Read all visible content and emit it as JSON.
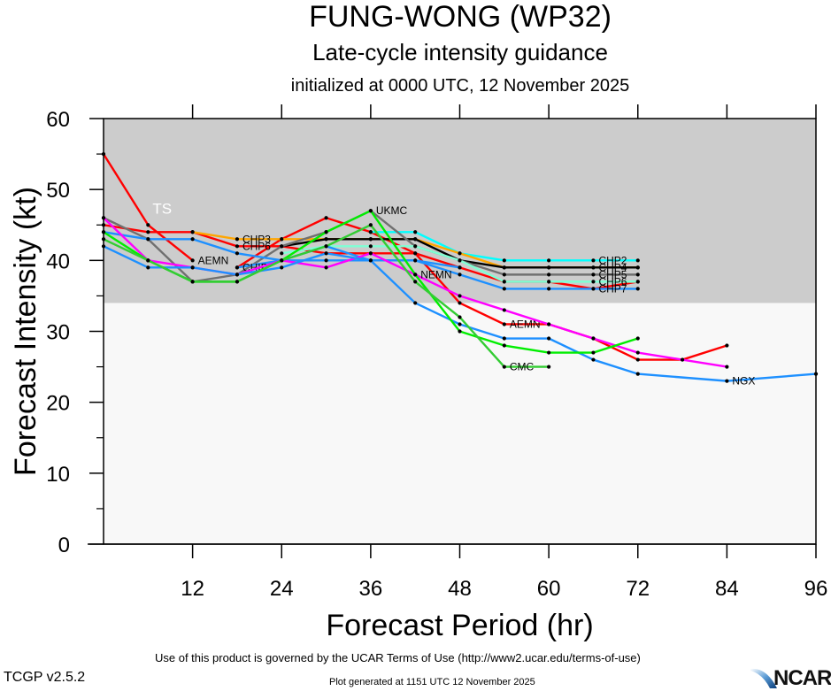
{
  "header": {
    "title": "FUNG-WONG (WP32)",
    "subtitle": "Late-cycle intensity guidance",
    "init_line": "initialized at 0000 UTC, 12 November 2025"
  },
  "footer": {
    "terms": "Use of this product is governed by the UCAR Terms of Use (http://www2.ucar.edu/terms-of-use)",
    "generated": "Plot generated at 1151 UTC   12 November 2025",
    "version": "TCGP v2.5.2",
    "logo": "NCAR"
  },
  "colors": {
    "ts_band": "#cccccc",
    "below_ts": "#f8f8f8"
  },
  "chart_data": {
    "type": "line",
    "title": "FUNG-WONG (WP32)",
    "xlabel": "Forecast Period (hr)",
    "ylabel": "Forecast Intensity (kt)",
    "xlim": [
      0,
      96
    ],
    "ylim": [
      0,
      60
    ],
    "xticks": [
      12,
      24,
      36,
      48,
      60,
      72,
      84,
      96
    ],
    "yticks": [
      0,
      10,
      20,
      30,
      40,
      50,
      60
    ],
    "grid": false,
    "bands": [
      {
        "label": "TS",
        "from": 34,
        "to": 60,
        "color": "#cccccc"
      }
    ],
    "series": [
      {
        "name": "AEMN",
        "color": "#ff0000",
        "x": [
          0,
          6,
          12
        ],
        "y": [
          55,
          45,
          40
        ],
        "label_at": 12
      },
      {
        "name": "AEMN",
        "color": "#ff0000",
        "x": [
          18,
          24,
          30,
          36,
          42,
          48,
          54,
          60,
          66,
          72,
          78,
          84
        ],
        "y": [
          39,
          43,
          46,
          44,
          41,
          34,
          31,
          31,
          29,
          26,
          26,
          28
        ],
        "label_at": 54
      },
      {
        "name": "CHP6",
        "color": "#ff0000",
        "x": [
          0,
          6,
          12,
          18,
          24,
          30,
          36,
          42,
          48,
          54,
          60,
          66,
          72
        ],
        "y": [
          45,
          44,
          44,
          42,
          42,
          41,
          41,
          41,
          39,
          37,
          37,
          36,
          37
        ],
        "label_at": 18
      },
      {
        "name": "CHP2",
        "color": "#00ffff",
        "x": [
          36,
          42,
          48,
          54,
          60,
          66,
          72
        ],
        "y": [
          44,
          44,
          41,
          40,
          40,
          40,
          40
        ],
        "label_at": 66
      },
      {
        "name": "CHP3",
        "color": "#ffa500",
        "x": [
          12,
          18,
          24,
          30,
          36,
          42,
          48,
          54,
          60,
          66,
          72
        ],
        "y": [
          44,
          43,
          43,
          43,
          43,
          43,
          41,
          39,
          39,
          39,
          39
        ],
        "label_at": 18
      },
      {
        "name": "CHP4",
        "color": "#000000",
        "x": [
          24,
          30,
          36,
          42,
          48,
          54,
          60,
          66,
          72
        ],
        "y": [
          42,
          43,
          43,
          43,
          40,
          39,
          39,
          39,
          39
        ],
        "label_at": 66
      },
      {
        "name": "CHP5",
        "color": "#707070",
        "x": [
          0,
          6,
          12,
          18,
          24,
          30,
          36,
          42,
          48,
          54,
          60,
          66,
          72
        ],
        "y": [
          46,
          43,
          37,
          38,
          42,
          44,
          47,
          42,
          40,
          38,
          38,
          38,
          38
        ],
        "label_at": 66
      },
      {
        "name": "CHP6",
        "color": "#7fffd4",
        "x": [
          24,
          30,
          36,
          42,
          48,
          54,
          60,
          66,
          72
        ],
        "y": [
          41,
          42,
          42,
          42,
          40,
          37,
          37,
          37,
          37
        ],
        "label_at": 66
      },
      {
        "name": "CHP7",
        "color": "#1e90ff",
        "x": [
          0,
          6,
          12,
          18,
          24,
          30,
          36,
          42,
          48,
          54,
          60,
          66,
          72
        ],
        "y": [
          44,
          43,
          43,
          41,
          40,
          42,
          40,
          40,
          38,
          36,
          36,
          36,
          36
        ],
        "label_at": 66
      },
      {
        "name": "CHIP",
        "color": "#1e90ff",
        "x": [
          18,
          24,
          30,
          36,
          42,
          48
        ],
        "y": [
          39,
          40,
          40,
          40,
          40,
          39
        ],
        "label_at": 18
      },
      {
        "name": "NEMN",
        "color": "#ff00ff",
        "x": [
          0,
          6,
          12,
          18,
          24,
          30,
          36,
          42,
          48,
          54,
          60,
          66,
          72,
          78,
          84
        ],
        "y": [
          46,
          40,
          39,
          38,
          40,
          39,
          41,
          38,
          35,
          33,
          31,
          29,
          27,
          26,
          25
        ],
        "label_at": 42
      },
      {
        "name": "NGX",
        "color": "#1e90ff",
        "x": [
          0,
          6,
          12,
          18,
          24,
          30,
          36,
          42,
          48,
          54,
          60,
          66,
          72,
          84,
          96
        ],
        "y": [
          42,
          39,
          39,
          38,
          39,
          41,
          40,
          34,
          31,
          29,
          29,
          26,
          24,
          23,
          24
        ],
        "label_at": 84
      },
      {
        "name": "UKMC",
        "color": "#00ee00",
        "x": [
          0,
          6,
          12,
          18,
          24,
          30,
          36,
          42,
          48,
          54,
          60,
          66,
          72
        ],
        "y": [
          44,
          40,
          37,
          37,
          40,
          44,
          47,
          38,
          30,
          28,
          27,
          27,
          29
        ],
        "label_at": 36
      },
      {
        "name": "CMC",
        "color": "#33cc33",
        "x": [
          0,
          6,
          12,
          18,
          24,
          30,
          36,
          42,
          48,
          54,
          60
        ],
        "y": [
          43,
          40,
          37,
          37,
          40,
          42,
          45,
          37,
          32,
          25,
          25
        ],
        "label_at": 54
      }
    ]
  }
}
